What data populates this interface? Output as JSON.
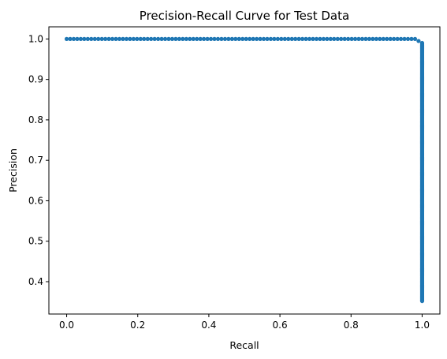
{
  "chart_data": {
    "type": "scatter",
    "title": "Precision-Recall Curve for Test Data",
    "xlabel": "Recall",
    "ylabel": "Precision",
    "xlim": [
      -0.05,
      1.05
    ],
    "ylim": [
      0.32,
      1.03
    ],
    "xticks": [
      0.0,
      0.2,
      0.4,
      0.6,
      0.8,
      1.0
    ],
    "xtick_labels": [
      "0.0",
      "0.2",
      "0.4",
      "0.6",
      "0.8",
      "1.0"
    ],
    "yticks": [
      0.4,
      0.5,
      0.6,
      0.7,
      0.8,
      0.9,
      1.0
    ],
    "ytick_labels": [
      "0.4",
      "0.5",
      "0.6",
      "0.7",
      "0.8",
      "0.9",
      "1.0"
    ],
    "grid": false,
    "legend": "none",
    "marker_color": "#1f77b4",
    "series": [
      {
        "segments": [
          {
            "from": {
              "x": 0.0,
              "y": 1.0
            },
            "to": {
              "x": 0.98,
              "y": 1.0
            },
            "points": 100
          },
          {
            "from": {
              "x": 0.99,
              "y": 0.995
            },
            "to": {
              "x": 0.99,
              "y": 0.995
            },
            "points": 1
          },
          {
            "from": {
              "x": 1.0,
              "y": 0.99
            },
            "to": {
              "x": 1.0,
              "y": 0.352
            },
            "points": 320
          }
        ]
      }
    ]
  }
}
